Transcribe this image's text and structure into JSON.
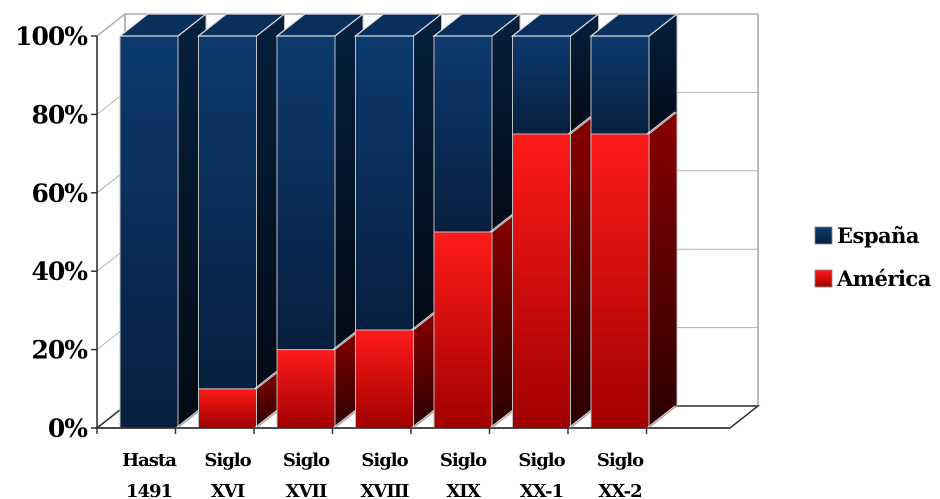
{
  "chart_data": {
    "type": "bar",
    "stacked": "percent",
    "categories": [
      [
        "Hasta",
        "1491"
      ],
      [
        "Siglo",
        "XVI"
      ],
      [
        "Siglo",
        "XVII"
      ],
      [
        "Siglo",
        "XVIII"
      ],
      [
        "Siglo",
        "XIX"
      ],
      [
        "Siglo",
        "XX-1"
      ],
      [
        "Siglo",
        "XX-2"
      ]
    ],
    "series": [
      {
        "name": "América",
        "values": [
          0,
          10,
          20,
          25,
          50,
          75,
          75
        ]
      },
      {
        "name": "España",
        "values": [
          100,
          90,
          80,
          75,
          50,
          25,
          25
        ]
      }
    ],
    "ylim": [
      0,
      100
    ],
    "yticks": [
      "0%",
      "20%",
      "40%",
      "60%",
      "80%",
      "100%"
    ],
    "grid": true,
    "legend": "right",
    "legend_order": [
      "España",
      "América"
    ]
  },
  "colors": {
    "españa": "#0a2f5c",
    "américa": "#e60000"
  }
}
